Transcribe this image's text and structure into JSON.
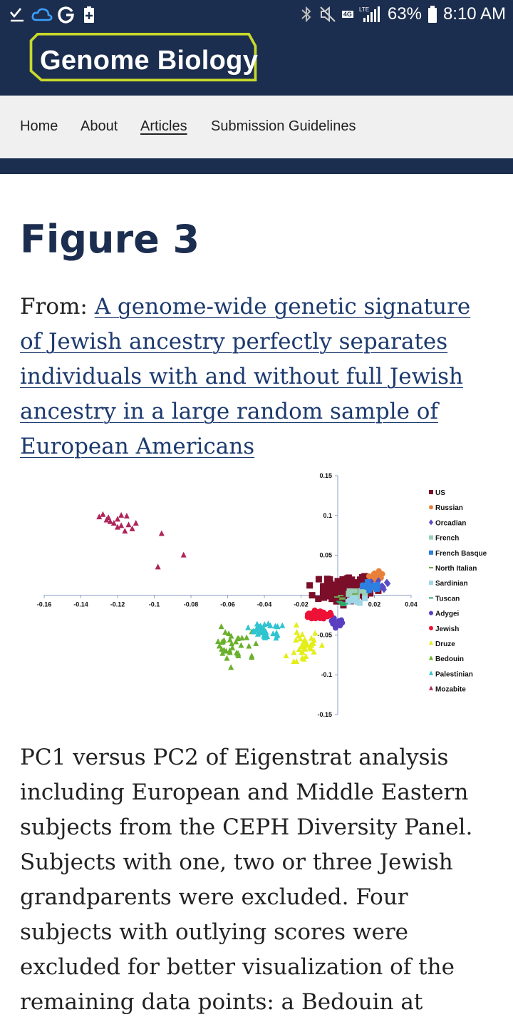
{
  "status_bar": {
    "signal_label": "4G",
    "lte_label": "LTE",
    "battery": "63%",
    "time": "8:10 AM"
  },
  "header": {
    "logo": "Genome Biology",
    "logo_border_color": "#c8d92b",
    "bg_color": "#1c2e4f"
  },
  "nav": {
    "items": [
      {
        "label": "Home"
      },
      {
        "label": "About"
      },
      {
        "label": "Articles"
      },
      {
        "label": "Submission Guidelines"
      }
    ]
  },
  "figure": {
    "title": "Figure 3",
    "from_prefix": "From: ",
    "article_link": "A genome-wide genetic signature of Jewish ancestry perfectly separates individuals with and without full Jewish ancestry in a large random sample of European Americans",
    "caption": "PC1 versus PC2 of Eigenstrat analysis including European and Middle Eastern subjects from the CEPH Diversity Panel. Subjects with one, two or three Jewish grandparents were excluded. Four subjects with outlying scores were excluded for better visualization of the remaining data points: a Bedouin at"
  },
  "chart_data": {
    "type": "scatter",
    "xlim": [
      -0.16,
      0.04
    ],
    "ylim": [
      -0.15,
      0.15
    ],
    "x_ticks": [
      "-0.16",
      "-0.14",
      "-0.12",
      "-0.1",
      "-0.08",
      "-0.06",
      "-0.04",
      "-0.02",
      "0",
      "0.02",
      "0.04"
    ],
    "y_ticks": [
      "0.15",
      "0.1",
      "0.05",
      "0",
      "-0.05",
      "-0.1",
      "-0.15"
    ],
    "legend_position": "right",
    "series": [
      {
        "name": "US",
        "marker": "square",
        "color": "#7b0f2a",
        "center": [
          0.005,
          0.008
        ],
        "spread": [
          0.012,
          0.012
        ],
        "count": 140
      },
      {
        "name": "Russian",
        "marker": "circle",
        "color": "#e8803a",
        "center": [
          0.021,
          0.025
        ],
        "spread": [
          0.004,
          0.004
        ],
        "count": 14
      },
      {
        "name": "Orcadian",
        "marker": "diamond",
        "color": "#5a4dc4",
        "center": [
          0.024,
          0.013
        ],
        "spread": [
          0.005,
          0.005
        ],
        "count": 14
      },
      {
        "name": "French",
        "marker": "square",
        "color": "#9ad0b8",
        "center": [
          0.012,
          0.002
        ],
        "spread": [
          0.006,
          0.004
        ],
        "count": 12
      },
      {
        "name": "French Basque",
        "marker": "square",
        "color": "#2d7fe0",
        "center": [
          0.018,
          0.01
        ],
        "spread": [
          0.004,
          0.005
        ],
        "count": 14
      },
      {
        "name": "North Italian",
        "marker": "dash",
        "color": "#6aa84f",
        "center": [
          0.006,
          -0.004
        ],
        "spread": [
          0.006,
          0.004
        ],
        "count": 10
      },
      {
        "name": "Sardinian",
        "marker": "square",
        "color": "#9fd6e6",
        "center": [
          0.01,
          -0.006
        ],
        "spread": [
          0.004,
          0.003
        ],
        "count": 10
      },
      {
        "name": "Tuscan",
        "marker": "dash",
        "color": "#2ea86b",
        "center": [
          0.002,
          -0.008
        ],
        "spread": [
          0.004,
          0.003
        ],
        "count": 8
      },
      {
        "name": "Adygei",
        "marker": "circle",
        "color": "#5a3ec0",
        "center": [
          -0.001,
          -0.035
        ],
        "spread": [
          0.004,
          0.006
        ],
        "count": 12
      },
      {
        "name": "Jewish",
        "marker": "circle",
        "color": "#ee1136",
        "center": [
          -0.01,
          -0.025
        ],
        "spread": [
          0.006,
          0.005
        ],
        "count": 60
      },
      {
        "name": "Druze",
        "marker": "triangle",
        "color": "#e4ee1a",
        "center": [
          -0.018,
          -0.065
        ],
        "spread": [
          0.007,
          0.015
        ],
        "count": 38
      },
      {
        "name": "Bedouin",
        "marker": "triangle",
        "color": "#6ab02c",
        "center": [
          -0.055,
          -0.065
        ],
        "spread": [
          0.01,
          0.018
        ],
        "count": 36
      },
      {
        "name": "Palestinian",
        "marker": "triangle",
        "color": "#2ec4d0",
        "center": [
          -0.04,
          -0.045
        ],
        "spread": [
          0.008,
          0.009
        ],
        "count": 38
      },
      {
        "name": "Mozabite",
        "marker": "triangle",
        "color": "#b0245a",
        "points": [
          [
            -0.128,
            0.101
          ],
          [
            -0.13,
            0.098
          ],
          [
            -0.125,
            0.097
          ],
          [
            -0.12,
            0.095
          ],
          [
            -0.118,
            0.1
          ],
          [
            -0.115,
            0.099
          ],
          [
            -0.122,
            0.09
          ],
          [
            -0.126,
            0.094
          ],
          [
            -0.118,
            0.087
          ],
          [
            -0.114,
            0.088
          ],
          [
            -0.12,
            0.085
          ],
          [
            -0.116,
            0.08
          ],
          [
            -0.112,
            0.083
          ],
          [
            -0.124,
            0.092
          ],
          [
            -0.096,
            0.077
          ],
          [
            -0.084,
            0.05
          ],
          [
            -0.098,
            0.035
          ],
          [
            -0.11,
            0.09
          ]
        ]
      }
    ]
  }
}
